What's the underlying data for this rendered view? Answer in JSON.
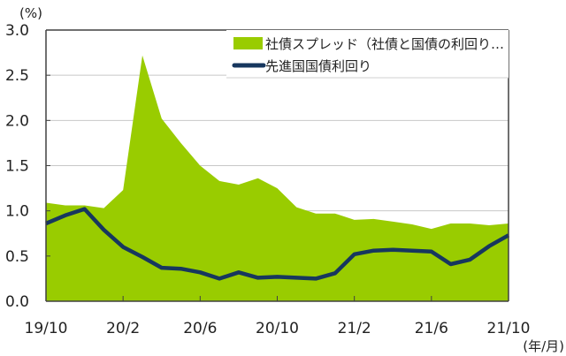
{
  "chart_data": {
    "type": "area+line",
    "title": "",
    "ylabel": "(%)",
    "xlabel": "(年/月)",
    "ylim": [
      0.0,
      3.0
    ],
    "yticks": [
      "0.0",
      "0.5",
      "1.0",
      "1.5",
      "2.0",
      "2.5",
      "3.0"
    ],
    "xtick_labels": [
      "19/10",
      "20/2",
      "20/6",
      "20/10",
      "21/2",
      "21/6",
      "21/10"
    ],
    "grid": true,
    "legend_position": "top-right inside",
    "x": [
      "19/10",
      "19/11",
      "19/12",
      "20/1",
      "20/2",
      "20/3",
      "20/4",
      "20/5",
      "20/6",
      "20/7",
      "20/8",
      "20/9",
      "20/10",
      "20/11",
      "20/12",
      "21/1",
      "21/2",
      "21/3",
      "21/4",
      "21/5",
      "21/6",
      "21/7",
      "21/8",
      "21/9",
      "21/10"
    ],
    "series": [
      {
        "name": "社債スプレッド（社債と国債の利回り…",
        "type": "area",
        "color": "#99CC00",
        "values": [
          1.09,
          1.06,
          1.06,
          1.03,
          1.23,
          2.72,
          2.02,
          1.75,
          1.5,
          1.33,
          1.29,
          1.36,
          1.25,
          1.04,
          0.97,
          0.97,
          0.9,
          0.91,
          0.88,
          0.85,
          0.8,
          0.86,
          0.86,
          0.84,
          0.86
        ]
      },
      {
        "name": "先進国国債利回り",
        "type": "line",
        "color": "#17375E",
        "values": [
          0.86,
          0.95,
          1.02,
          0.79,
          0.6,
          0.49,
          0.37,
          0.36,
          0.32,
          0.25,
          0.32,
          0.26,
          0.27,
          0.26,
          0.25,
          0.31,
          0.52,
          0.56,
          0.57,
          0.56,
          0.55,
          0.41,
          0.46,
          0.61,
          0.73
        ]
      }
    ]
  },
  "labels": {
    "y_unit": "(%)",
    "x_unit": "(年/月)",
    "legend_area": "社債スプレッド（社債と国債の利回り…",
    "legend_line": "先進国国債利回り"
  }
}
